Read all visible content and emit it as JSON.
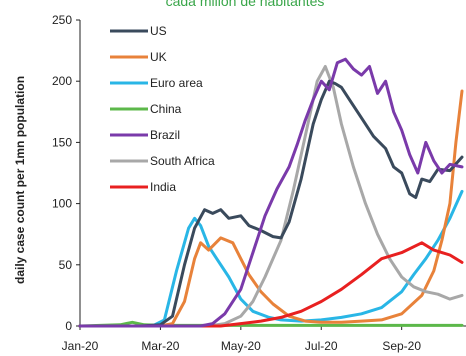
{
  "chart_data": {
    "type": "line",
    "subtitle": "cada millón de habitantes",
    "ylabel": "daily case count per 1mn population",
    "xlabel": "",
    "x_tick_labels": [
      "Jan-20",
      "Mar-20",
      "May-20",
      "Jul-20",
      "Sep-20"
    ],
    "x_tick_months": [
      0,
      2,
      4,
      6,
      8
    ],
    "x_range_months": [
      0,
      9.6
    ],
    "ylim": [
      0,
      250
    ],
    "y_ticks": [
      0,
      50,
      100,
      150,
      200,
      250
    ],
    "legend_position": "upper-left",
    "grid": false,
    "series": [
      {
        "name": "US",
        "color": "#3a4a5c",
        "points": [
          [
            0,
            0
          ],
          [
            1.5,
            0
          ],
          [
            2.0,
            1
          ],
          [
            2.3,
            8
          ],
          [
            2.6,
            50
          ],
          [
            2.85,
            80
          ],
          [
            3.1,
            95
          ],
          [
            3.3,
            92
          ],
          [
            3.5,
            95
          ],
          [
            3.7,
            88
          ],
          [
            4.0,
            90
          ],
          [
            4.2,
            82
          ],
          [
            4.5,
            78
          ],
          [
            4.8,
            73
          ],
          [
            5.0,
            72
          ],
          [
            5.2,
            85
          ],
          [
            5.5,
            120
          ],
          [
            5.8,
            165
          ],
          [
            6.0,
            185
          ],
          [
            6.2,
            200
          ],
          [
            6.35,
            198
          ],
          [
            6.5,
            195
          ],
          [
            6.7,
            185
          ],
          [
            7.0,
            170
          ],
          [
            7.3,
            155
          ],
          [
            7.6,
            145
          ],
          [
            7.8,
            130
          ],
          [
            8.0,
            125
          ],
          [
            8.2,
            108
          ],
          [
            8.35,
            105
          ],
          [
            8.5,
            120
          ],
          [
            8.7,
            118
          ],
          [
            8.9,
            128
          ],
          [
            9.2,
            127
          ],
          [
            9.5,
            138
          ]
        ]
      },
      {
        "name": "UK",
        "color": "#e8823a",
        "points": [
          [
            0,
            0
          ],
          [
            2.0,
            0
          ],
          [
            2.3,
            2
          ],
          [
            2.6,
            20
          ],
          [
            2.85,
            55
          ],
          [
            3.0,
            68
          ],
          [
            3.2,
            62
          ],
          [
            3.5,
            72
          ],
          [
            3.8,
            68
          ],
          [
            4.0,
            55
          ],
          [
            4.2,
            42
          ],
          [
            4.5,
            28
          ],
          [
            4.8,
            18
          ],
          [
            5.2,
            8
          ],
          [
            5.6,
            4
          ],
          [
            6.0,
            3
          ],
          [
            6.5,
            3
          ],
          [
            7.0,
            4
          ],
          [
            7.5,
            5
          ],
          [
            8.0,
            10
          ],
          [
            8.5,
            25
          ],
          [
            8.8,
            45
          ],
          [
            9.0,
            70
          ],
          [
            9.2,
            100
          ],
          [
            9.35,
            150
          ],
          [
            9.5,
            192
          ]
        ]
      },
      {
        "name": "Euro area",
        "color": "#29b6e6",
        "points": [
          [
            0,
            0
          ],
          [
            1.8,
            0
          ],
          [
            2.1,
            5
          ],
          [
            2.4,
            45
          ],
          [
            2.7,
            80
          ],
          [
            2.85,
            88
          ],
          [
            3.0,
            82
          ],
          [
            3.2,
            65
          ],
          [
            3.4,
            55
          ],
          [
            3.7,
            40
          ],
          [
            4.0,
            22
          ],
          [
            4.3,
            12
          ],
          [
            4.7,
            7
          ],
          [
            5.0,
            5
          ],
          [
            5.5,
            4
          ],
          [
            6.0,
            5
          ],
          [
            6.5,
            7
          ],
          [
            7.0,
            10
          ],
          [
            7.5,
            15
          ],
          [
            8.0,
            28
          ],
          [
            8.3,
            42
          ],
          [
            8.6,
            55
          ],
          [
            8.9,
            70
          ],
          [
            9.2,
            88
          ],
          [
            9.5,
            110
          ]
        ]
      },
      {
        "name": "China",
        "color": "#5cb84a",
        "points": [
          [
            0,
            0
          ],
          [
            1.0,
            1
          ],
          [
            1.3,
            3
          ],
          [
            1.6,
            1
          ],
          [
            2.0,
            0.5
          ],
          [
            9.5,
            0.5
          ]
        ]
      },
      {
        "name": "Brazil",
        "color": "#7a3aaa",
        "points": [
          [
            0,
            0
          ],
          [
            3.0,
            0
          ],
          [
            3.3,
            2
          ],
          [
            3.6,
            10
          ],
          [
            4.0,
            30
          ],
          [
            4.3,
            60
          ],
          [
            4.6,
            90
          ],
          [
            4.9,
            112
          ],
          [
            5.2,
            130
          ],
          [
            5.4,
            148
          ],
          [
            5.6,
            168
          ],
          [
            5.8,
            185
          ],
          [
            6.0,
            200
          ],
          [
            6.2,
            193
          ],
          [
            6.4,
            215
          ],
          [
            6.6,
            218
          ],
          [
            6.8,
            210
          ],
          [
            7.0,
            205
          ],
          [
            7.2,
            212
          ],
          [
            7.4,
            190
          ],
          [
            7.6,
            200
          ],
          [
            7.8,
            175
          ],
          [
            8.0,
            160
          ],
          [
            8.2,
            140
          ],
          [
            8.4,
            125
          ],
          [
            8.6,
            150
          ],
          [
            8.8,
            135
          ],
          [
            9.0,
            125
          ],
          [
            9.2,
            132
          ],
          [
            9.5,
            130
          ]
        ]
      },
      {
        "name": "South Africa",
        "color": "#a8a8a8",
        "points": [
          [
            0,
            0
          ],
          [
            3.2,
            0
          ],
          [
            3.6,
            2
          ],
          [
            4.0,
            8
          ],
          [
            4.3,
            20
          ],
          [
            4.6,
            40
          ],
          [
            5.0,
            70
          ],
          [
            5.3,
            110
          ],
          [
            5.6,
            155
          ],
          [
            5.9,
            200
          ],
          [
            6.1,
            212
          ],
          [
            6.3,
            195
          ],
          [
            6.5,
            165
          ],
          [
            6.8,
            130
          ],
          [
            7.1,
            100
          ],
          [
            7.4,
            75
          ],
          [
            7.7,
            55
          ],
          [
            8.0,
            40
          ],
          [
            8.3,
            32
          ],
          [
            8.6,
            28
          ],
          [
            8.9,
            26
          ],
          [
            9.2,
            22
          ],
          [
            9.5,
            25
          ]
        ]
      },
      {
        "name": "India",
        "color": "#e82020",
        "points": [
          [
            0,
            0
          ],
          [
            3.5,
            0
          ],
          [
            4.0,
            2
          ],
          [
            4.5,
            4
          ],
          [
            5.0,
            7
          ],
          [
            5.5,
            12
          ],
          [
            6.0,
            20
          ],
          [
            6.5,
            30
          ],
          [
            7.0,
            42
          ],
          [
            7.5,
            55
          ],
          [
            8.0,
            60
          ],
          [
            8.5,
            68
          ],
          [
            8.8,
            62
          ],
          [
            9.0,
            60
          ],
          [
            9.2,
            58
          ],
          [
            9.5,
            52
          ]
        ]
      }
    ]
  }
}
